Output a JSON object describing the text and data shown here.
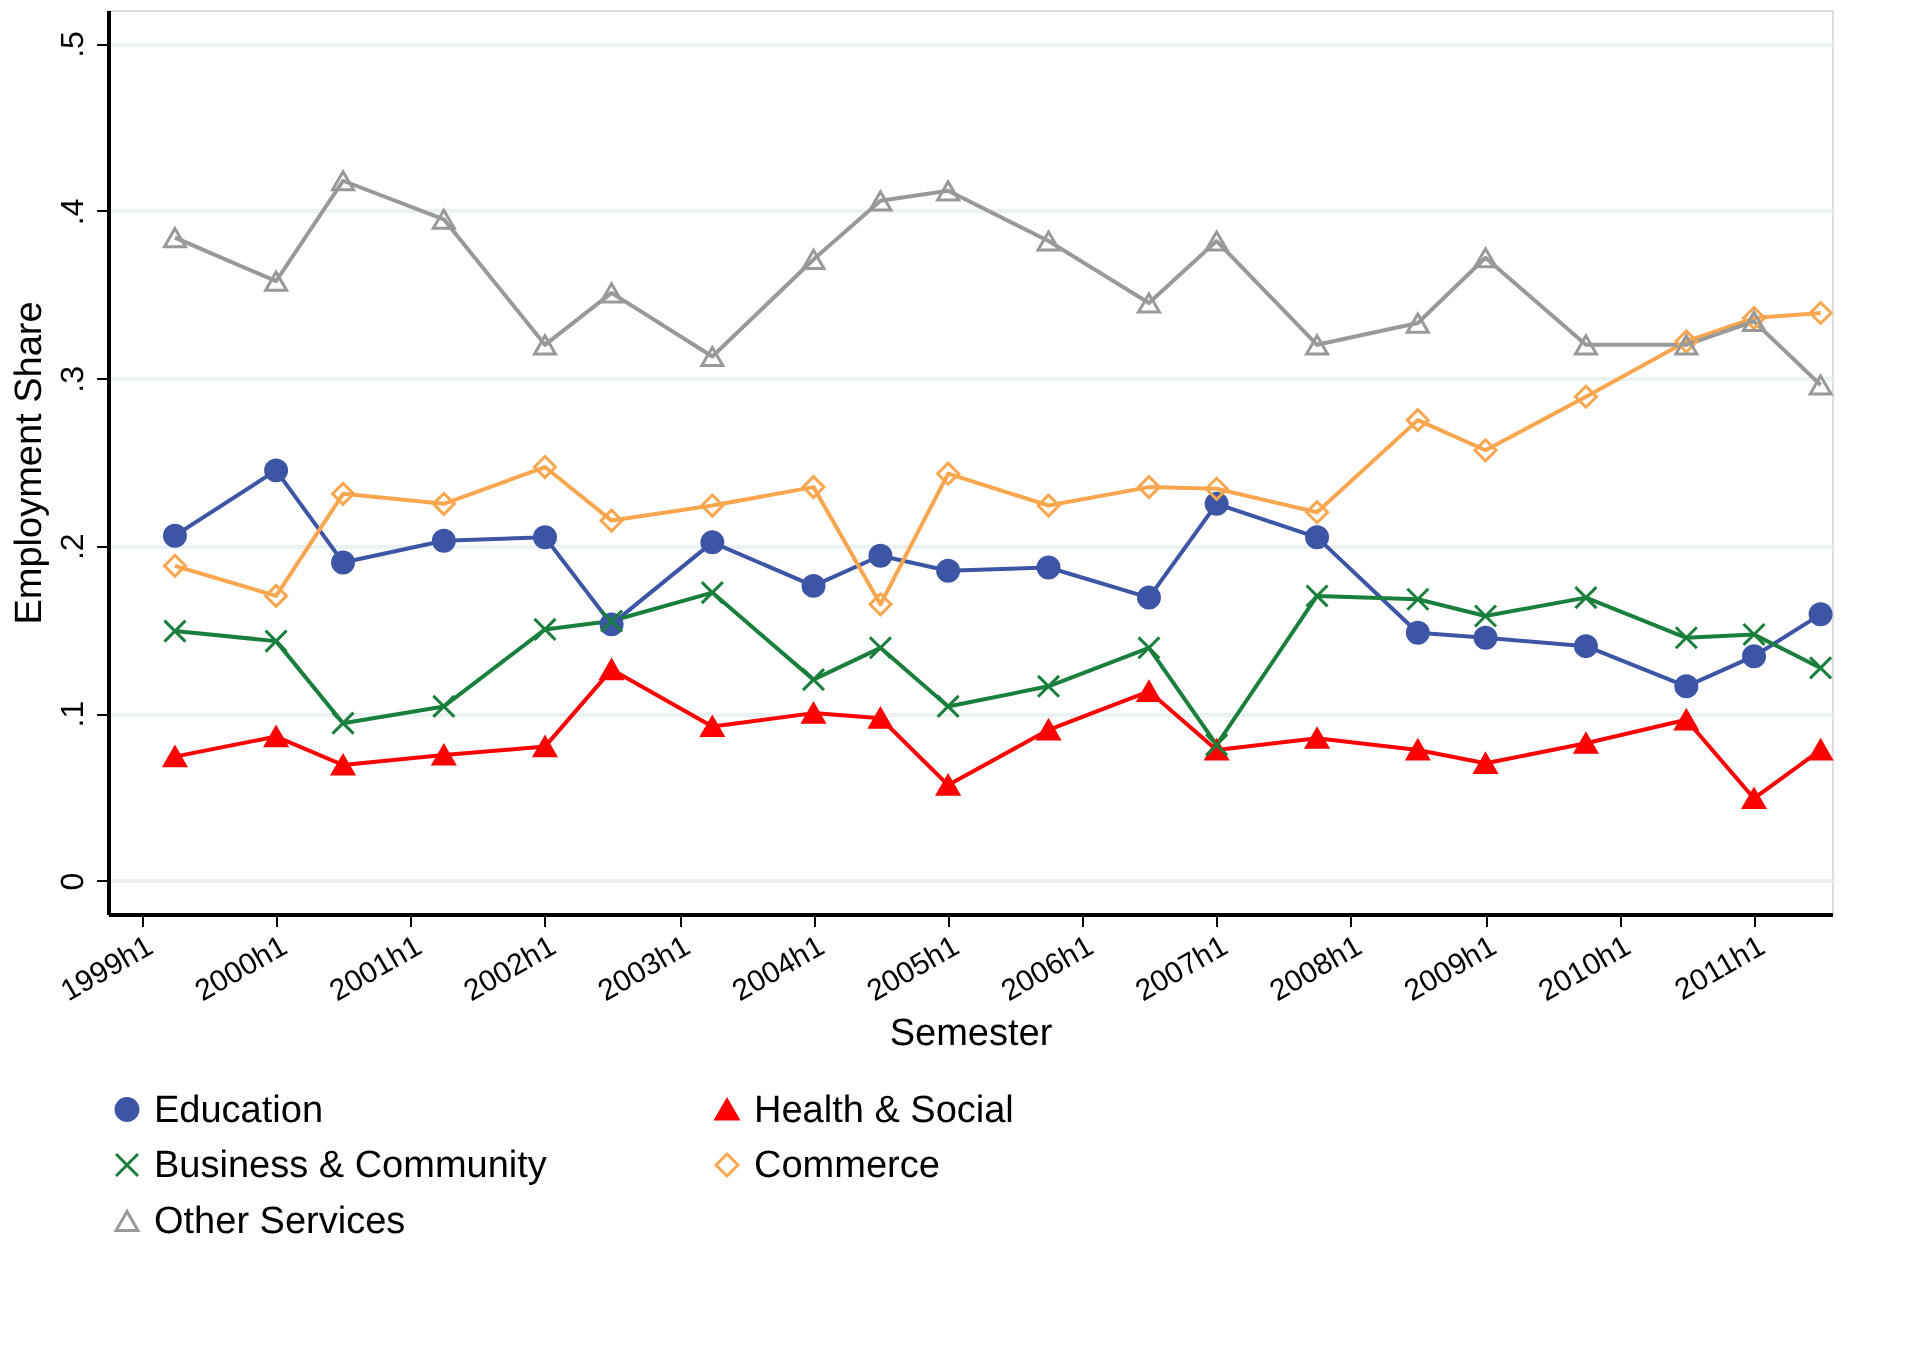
{
  "chart_data": {
    "type": "line",
    "xlabel": "Semester",
    "ylabel": "Employment Share",
    "x": [
      "1999-04",
      "2000-01",
      "2000-07",
      "2001-04",
      "2002-01",
      "2002-07",
      "2003-04",
      "2004-01",
      "2004-07",
      "2005-01",
      "2005-10",
      "2006-07",
      "2007-01",
      "2007-10",
      "2008-07",
      "2009-01",
      "2009-10",
      "2010-07",
      "2011-01",
      "2011-07"
    ],
    "series": [
      {
        "name": "Education",
        "color": "#3d55a5",
        "marker": "circle",
        "values": [
          0.206,
          0.245,
          0.19,
          0.203,
          0.205,
          0.153,
          0.202,
          0.176,
          0.194,
          0.185,
          0.187,
          0.169,
          0.225,
          0.205,
          0.148,
          0.145,
          0.14,
          0.116,
          0.134,
          0.159
        ]
      },
      {
        "name": "Health & Social",
        "color": "#ff0000",
        "marker": "triangle",
        "values": [
          0.074,
          0.086,
          0.069,
          0.075,
          0.08,
          0.126,
          0.092,
          0.1,
          0.097,
          0.057,
          0.09,
          0.113,
          0.078,
          0.085,
          0.078,
          0.07,
          0.082,
          0.096,
          0.049,
          0.078
        ]
      },
      {
        "name": "Business & Community",
        "color": "#1a7f3c",
        "marker": "cross",
        "values": [
          0.149,
          0.143,
          0.094,
          0.104,
          0.15,
          0.155,
          0.172,
          0.12,
          0.139,
          0.104,
          0.116,
          0.139,
          0.081,
          0.17,
          0.168,
          0.158,
          0.169,
          0.145,
          0.147,
          0.127
        ]
      },
      {
        "name": "Commerce",
        "color": "#f9a64f",
        "marker": "diamond",
        "values": [
          0.188,
          0.17,
          0.231,
          0.225,
          0.247,
          0.215,
          0.224,
          0.235,
          0.165,
          0.243,
          0.224,
          0.235,
          0.234,
          0.22,
          0.275,
          0.257,
          0.289,
          0.322,
          0.336,
          0.339
        ]
      },
      {
        "name": "Other Services",
        "color": "#999999",
        "marker": "triangle",
        "values": [
          0.384,
          0.358,
          0.418,
          0.395,
          0.32,
          0.351,
          0.313,
          0.371,
          0.406,
          0.412,
          0.382,
          0.345,
          0.382,
          0.32,
          0.333,
          0.372,
          0.32,
          0.32,
          0.334,
          0.296
        ]
      }
    ],
    "xlim": [
      "1998-10",
      "2011-08"
    ],
    "xticks": [
      {
        "value": "1999-01",
        "label": "1999h1"
      },
      {
        "value": "2000-01",
        "label": "2000h1"
      },
      {
        "value": "2001-01",
        "label": "2001h1"
      },
      {
        "value": "2002-01",
        "label": "2002h1"
      },
      {
        "value": "2003-01",
        "label": "2003h1"
      },
      {
        "value": "2004-01",
        "label": "2004h1"
      },
      {
        "value": "2005-01",
        "label": "2005h1"
      },
      {
        "value": "2006-01",
        "label": "2006h1"
      },
      {
        "value": "2007-01",
        "label": "2007h1"
      },
      {
        "value": "2008-01",
        "label": "2008h1"
      },
      {
        "value": "2009-01",
        "label": "2009h1"
      },
      {
        "value": "2010-01",
        "label": "2010h1"
      },
      {
        "value": "2011-01",
        "label": "2011h1"
      }
    ],
    "ylim": [
      -0.02,
      0.52
    ],
    "yticks": [
      0,
      {
        "value": 0.1,
        "label": ".1"
      },
      {
        "value": 0.2,
        "label": ".2"
      },
      {
        "value": 0.3,
        "label": ".3"
      },
      {
        "value": 0.4,
        "label": ".4"
      },
      {
        "value": 0.5,
        "label": ".5"
      }
    ],
    "grid": "y",
    "legend": "bottom",
    "line_style": "solid"
  }
}
